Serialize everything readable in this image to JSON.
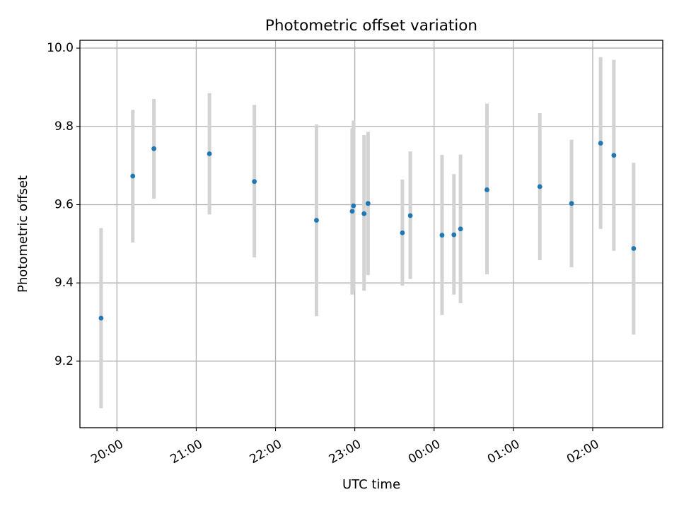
{
  "chart_data": {
    "type": "scatter",
    "title": "Photometric offset variation",
    "xlabel": "UTC time",
    "ylabel": "Photometric offset",
    "x_unit": "UTC",
    "x_range": [
      "19:32",
      "02:53"
    ],
    "ylim": [
      9.03,
      10.02
    ],
    "x_ticks": [
      "20:00",
      "21:00",
      "22:00",
      "23:00",
      "00:00",
      "01:00",
      "02:00"
    ],
    "y_ticks": [
      "9.2",
      "9.4",
      "9.6",
      "9.8",
      "10.0"
    ],
    "grid": true,
    "legend": "none",
    "colors": {
      "marker": "#1f77b4",
      "errorbar": "#d3d3d3"
    },
    "points": [
      {
        "time": "19:48",
        "y": 9.31,
        "ylow": 9.08,
        "yhigh": 9.54
      },
      {
        "time": "20:12",
        "y": 9.673,
        "ylow": 9.503,
        "yhigh": 9.842
      },
      {
        "time": "20:28",
        "y": 9.743,
        "ylow": 9.615,
        "yhigh": 9.87
      },
      {
        "time": "21:10",
        "y": 9.73,
        "ylow": 9.575,
        "yhigh": 9.885
      },
      {
        "time": "21:44",
        "y": 9.659,
        "ylow": 9.465,
        "yhigh": 9.855
      },
      {
        "time": "22:31",
        "y": 9.56,
        "ylow": 9.315,
        "yhigh": 9.805
      },
      {
        "time": "22:58",
        "y": 9.583,
        "ylow": 9.37,
        "yhigh": 9.795
      },
      {
        "time": "22:59",
        "y": 9.597,
        "ylow": 9.38,
        "yhigh": 9.815
      },
      {
        "time": "23:07",
        "y": 9.577,
        "ylow": 9.38,
        "yhigh": 9.778
      },
      {
        "time": "23:10",
        "y": 9.603,
        "ylow": 9.42,
        "yhigh": 9.786
      },
      {
        "time": "23:36",
        "y": 9.528,
        "ylow": 9.393,
        "yhigh": 9.664
      },
      {
        "time": "23:42",
        "y": 9.572,
        "ylow": 9.41,
        "yhigh": 9.736
      },
      {
        "time": "00:06",
        "y": 9.522,
        "ylow": 9.318,
        "yhigh": 9.727
      },
      {
        "time": "00:15",
        "y": 9.523,
        "ylow": 9.37,
        "yhigh": 9.678
      },
      {
        "time": "00:20",
        "y": 9.538,
        "ylow": 9.348,
        "yhigh": 9.728
      },
      {
        "time": "00:40",
        "y": 9.638,
        "ylow": 9.422,
        "yhigh": 9.858
      },
      {
        "time": "01:20",
        "y": 9.646,
        "ylow": 9.458,
        "yhigh": 9.834
      },
      {
        "time": "01:44",
        "y": 9.603,
        "ylow": 9.44,
        "yhigh": 9.766
      },
      {
        "time": "02:06",
        "y": 9.757,
        "ylow": 9.538,
        "yhigh": 9.977
      },
      {
        "time": "02:16",
        "y": 9.726,
        "ylow": 9.482,
        "yhigh": 9.97
      },
      {
        "time": "02:31",
        "y": 9.488,
        "ylow": 9.268,
        "yhigh": 9.707
      }
    ]
  }
}
